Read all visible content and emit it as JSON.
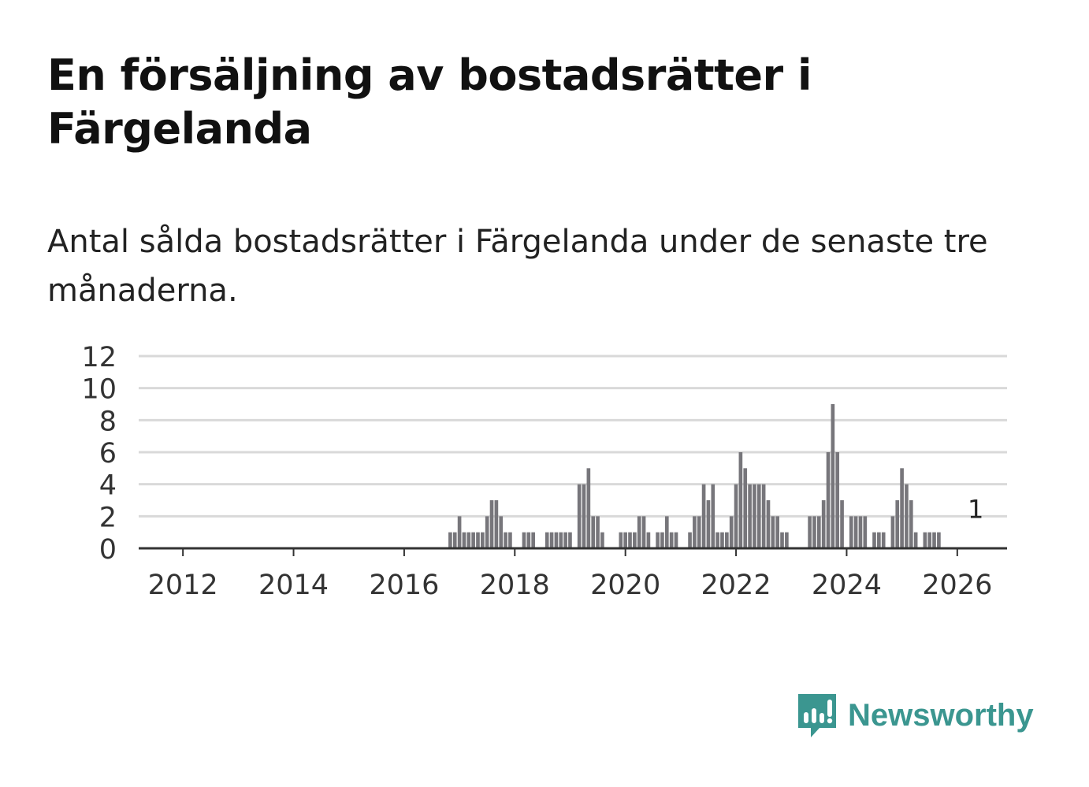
{
  "title": "En försäljning av bostadsrätter i Färgelanda",
  "subtitle": "Antal sålda bostadsrätter i Färgelanda under de senaste tre månaderna.",
  "brand": {
    "name": "Newsworthy",
    "color": "#3b9690"
  },
  "colors": {
    "bar": "#77767b",
    "highlight": "#2aa39a",
    "grid": "#d9d9d9",
    "axis": "#333333"
  },
  "chart_data": {
    "type": "bar",
    "title": "En försäljning av bostadsrätter i Färgelanda",
    "xlabel": "",
    "ylabel": "",
    "ylim": [
      0,
      12
    ],
    "yticks": [
      "0",
      "2",
      "4",
      "6",
      "8",
      "10",
      "12"
    ],
    "xlim": [
      2011.2,
      2026.9
    ],
    "xticks": [
      "2012",
      "2014",
      "2016",
      "2018",
      "2020",
      "2022",
      "2024",
      "2026"
    ],
    "x_start": 2011.25,
    "x_step": 0.08333,
    "values": [
      0,
      0,
      0,
      0,
      0,
      0,
      0,
      0,
      0,
      0,
      0,
      0,
      0,
      0,
      0,
      0,
      0,
      0,
      0,
      0,
      0,
      0,
      0,
      0,
      0,
      0,
      0,
      0,
      0,
      0,
      0,
      0,
      0,
      0,
      0,
      0,
      0,
      0,
      0,
      0,
      0,
      0,
      0,
      0,
      0,
      0,
      0,
      0,
      0,
      0,
      0,
      0,
      0,
      0,
      0,
      0,
      0,
      0,
      0,
      0,
      0,
      0,
      0,
      0,
      0,
      0,
      0,
      1,
      1,
      2,
      1,
      1,
      1,
      1,
      1,
      2,
      3,
      3,
      2,
      1,
      1,
      0,
      0,
      1,
      1,
      1,
      0,
      0,
      1,
      1,
      1,
      1,
      1,
      1,
      0,
      4,
      4,
      5,
      2,
      2,
      1,
      0,
      0,
      0,
      1,
      1,
      1,
      1,
      2,
      2,
      1,
      0,
      1,
      1,
      2,
      1,
      1,
      0,
      0,
      1,
      2,
      2,
      4,
      3,
      4,
      1,
      1,
      1,
      2,
      4,
      6,
      5,
      4,
      4,
      4,
      4,
      3,
      2,
      2,
      1,
      1,
      0,
      0,
      0,
      0,
      2,
      2,
      2,
      3,
      6,
      9,
      6,
      3,
      0,
      2,
      2,
      2,
      2,
      0,
      1,
      1,
      1,
      0,
      2,
      3,
      5,
      4,
      3,
      1,
      0,
      1,
      1,
      1,
      1
    ],
    "highlight": {
      "index": 181,
      "value": 1,
      "label": "1"
    }
  }
}
